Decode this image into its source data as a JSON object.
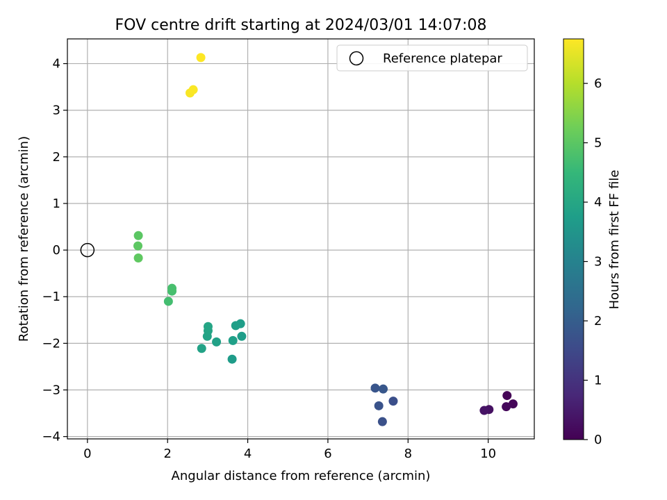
{
  "chart_data": {
    "type": "scatter",
    "title": "FOV centre drift starting at 2024/03/01 14:07:08",
    "xlabel": "Angular distance from reference (arcmin)",
    "ylabel": "Rotation from reference (arcmin)",
    "xlim": [
      -0.5,
      11.15
    ],
    "ylim": [
      -4.05,
      4.53
    ],
    "xticks": [
      0,
      2,
      4,
      6,
      8,
      10
    ],
    "xtick_labels": [
      "0",
      "2",
      "4",
      "6",
      "8",
      "10"
    ],
    "yticks": [
      -4,
      -3,
      -2,
      -1,
      0,
      1,
      2,
      3,
      4
    ],
    "ytick_labels": [
      "−4",
      "−3",
      "−2",
      "−1",
      "0",
      "1",
      "2",
      "3",
      "4"
    ],
    "grid": true,
    "legend": {
      "placement": "upper right",
      "entries": [
        {
          "label": "Reference platepar",
          "marker": "open-circle",
          "color": "#000000"
        }
      ]
    },
    "reference_point": {
      "x": 0,
      "y": 0
    },
    "colorbar": {
      "label": "Hours from first FF file",
      "range": [
        0,
        6.75
      ],
      "ticks": [
        0,
        1,
        2,
        3,
        4,
        5,
        6
      ],
      "colormap": "viridis",
      "colormap_stops": [
        "#440154",
        "#482878",
        "#3e4989",
        "#31688e",
        "#26828e",
        "#1f9e89",
        "#35b779",
        "#6ece58",
        "#b5de2b",
        "#fde725"
      ]
    },
    "points": [
      {
        "x": 10.47,
        "y": -3.12,
        "hours": 0.05
      },
      {
        "x": 10.62,
        "y": -3.3,
        "hours": 0.1
      },
      {
        "x": 10.45,
        "y": -3.36,
        "hours": 0.15
      },
      {
        "x": 10.02,
        "y": -3.42,
        "hours": 0.3
      },
      {
        "x": 9.9,
        "y": -3.44,
        "hours": 0.35
      },
      {
        "x": 7.63,
        "y": -3.24,
        "hours": 1.65
      },
      {
        "x": 7.36,
        "y": -3.68,
        "hours": 1.7
      },
      {
        "x": 7.27,
        "y": -3.34,
        "hours": 1.75
      },
      {
        "x": 7.18,
        "y": -2.96,
        "hours": 1.8
      },
      {
        "x": 7.38,
        "y": -2.98,
        "hours": 1.85
      },
      {
        "x": 3.61,
        "y": -2.34,
        "hours": 3.7
      },
      {
        "x": 3.85,
        "y": -1.85,
        "hours": 3.72
      },
      {
        "x": 3.82,
        "y": -1.58,
        "hours": 3.75
      },
      {
        "x": 3.7,
        "y": -1.62,
        "hours": 3.78
      },
      {
        "x": 3.63,
        "y": -1.94,
        "hours": 3.8
      },
      {
        "x": 3.22,
        "y": -1.97,
        "hours": 3.85
      },
      {
        "x": 2.85,
        "y": -2.11,
        "hours": 3.88
      },
      {
        "x": 2.99,
        "y": -1.85,
        "hours": 3.9
      },
      {
        "x": 3.01,
        "y": -1.73,
        "hours": 3.92
      },
      {
        "x": 3.01,
        "y": -1.64,
        "hours": 3.95
      },
      {
        "x": 2.02,
        "y": -1.1,
        "hours": 4.7
      },
      {
        "x": 2.11,
        "y": -0.88,
        "hours": 4.72
      },
      {
        "x": 2.11,
        "y": -0.82,
        "hours": 4.75
      },
      {
        "x": 1.27,
        "y": 0.31,
        "hours": 5.0
      },
      {
        "x": 1.26,
        "y": 0.09,
        "hours": 5.02
      },
      {
        "x": 1.27,
        "y": -0.17,
        "hours": 5.05
      },
      {
        "x": 2.56,
        "y": 3.37,
        "hours": 6.7
      },
      {
        "x": 2.64,
        "y": 3.44,
        "hours": 6.72
      },
      {
        "x": 2.83,
        "y": 4.13,
        "hours": 6.75
      }
    ]
  }
}
